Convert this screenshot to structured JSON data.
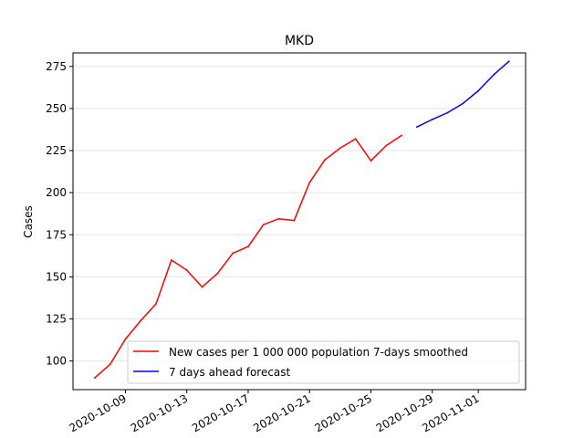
{
  "chart_data": {
    "type": "line",
    "title": "MKD",
    "xlabel": "",
    "ylabel": "Cases",
    "x_ticks": [
      "2020-10-09",
      "2020-10-13",
      "2020-10-17",
      "2020-10-21",
      "2020-10-25",
      "2020-10-29",
      "2020-11-01"
    ],
    "y_ticks": [
      100,
      125,
      150,
      175,
      200,
      225,
      250,
      275
    ],
    "xlim": [
      "2020-10-05T14:00",
      "2020-11-04T02:00"
    ],
    "ylim": [
      83,
      283
    ],
    "grid": "horizontal",
    "legend_position": "lower-right",
    "series": [
      {
        "name": "New cases per 1 000 000 population 7-days smoothed",
        "color": "#ff0000",
        "points": [
          [
            "2020-10-07",
            90
          ],
          [
            "2020-10-08",
            98
          ],
          [
            "2020-10-09",
            113
          ],
          [
            "2020-10-10",
            124
          ],
          [
            "2020-10-11",
            134
          ],
          [
            "2020-10-12",
            160
          ],
          [
            "2020-10-13",
            154
          ],
          [
            "2020-10-14",
            144
          ],
          [
            "2020-10-15",
            152
          ],
          [
            "2020-10-16",
            164
          ],
          [
            "2020-10-17",
            168
          ],
          [
            "2020-10-18",
            181
          ],
          [
            "2020-10-19",
            184.5
          ],
          [
            "2020-10-20",
            183.5
          ],
          [
            "2020-10-21",
            206
          ],
          [
            "2020-10-22",
            219.5
          ],
          [
            "2020-10-23",
            226.5
          ],
          [
            "2020-10-24",
            232
          ],
          [
            "2020-10-25",
            219
          ],
          [
            "2020-10-26",
            228
          ],
          [
            "2020-10-27",
            234
          ]
        ]
      },
      {
        "name": "7 days ahead forecast",
        "color": "#0000ff",
        "points": [
          [
            "2020-10-28",
            239
          ],
          [
            "2020-10-29",
            243.5
          ],
          [
            "2020-10-30",
            247.5
          ],
          [
            "2020-10-31",
            253
          ],
          [
            "2020-11-01",
            260.5
          ],
          [
            "2020-11-02",
            270
          ],
          [
            "2020-11-03",
            278
          ]
        ]
      }
    ]
  }
}
